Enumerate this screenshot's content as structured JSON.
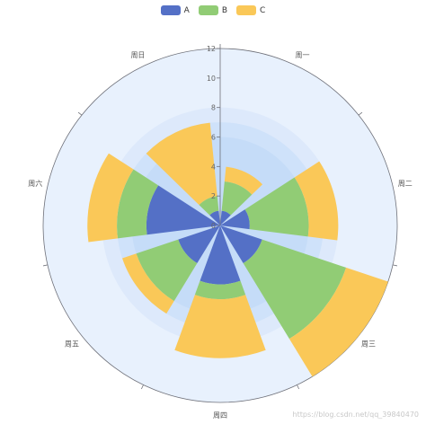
{
  "chart_data": {
    "type": "polar-stacked-bar",
    "categories": [
      "周一",
      "周二",
      "周三",
      "周四",
      "周五",
      "周六",
      "周日"
    ],
    "series": [
      {
        "name": "A",
        "color": "#5470c6",
        "values": [
          1,
          2,
          3,
          4,
          3,
          5,
          1
        ]
      },
      {
        "name": "B",
        "color": "#91cc75",
        "values": [
          2,
          4,
          6,
          1,
          3,
          2,
          1
        ]
      },
      {
        "name": "C",
        "color": "#fac858",
        "values": [
          1,
          2,
          3,
          4,
          1,
          2,
          5
        ]
      }
    ],
    "radius_axis": {
      "min": 0,
      "max": 12,
      "ticks": [
        0,
        2,
        4,
        6,
        8,
        10,
        12
      ]
    },
    "legend_position": "top-center",
    "background_bands": true
  },
  "watermark": "https://blog.csdn.net/qq_39840470"
}
